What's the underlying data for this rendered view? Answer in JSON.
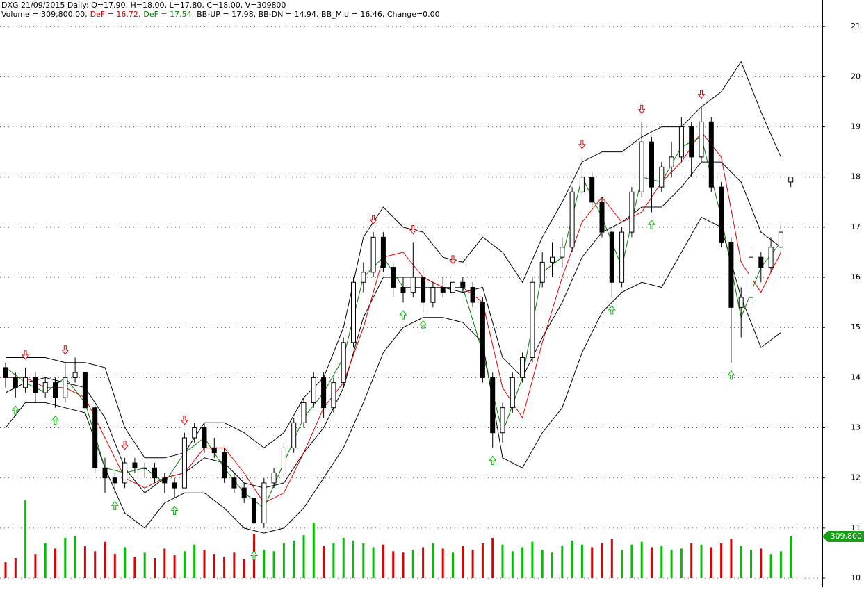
{
  "chart_data": {
    "type": "candlestick",
    "title": "DXG 21/09/2015 Daily: O=17.90, H=18.00, L=17.80, C=18.00, V=309800",
    "legend": [
      {
        "text": "Volume = 309,800.00,",
        "color": "#000000"
      },
      {
        "text": "DeF = 16.72,",
        "color": "#d40000"
      },
      {
        "text": "DeF = 17.54,",
        "color": "#008000"
      },
      {
        "text": "BB-UP = 17.98, BB-DN = 14.94, BB_Mid = 16.46, Change=0.00",
        "color": "#000000"
      }
    ],
    "ylim": [
      9.82,
      21.53
    ],
    "yticks": [
      10,
      11,
      12,
      13,
      14,
      15,
      16,
      17,
      18,
      19,
      20,
      21
    ],
    "grid": true,
    "ohlc": [
      [
        14.2,
        14.3,
        13.8,
        14.0
      ],
      [
        14.0,
        14.1,
        13.6,
        13.8
      ],
      [
        13.8,
        14.2,
        13.7,
        14.0
      ],
      [
        14.0,
        14.1,
        13.5,
        13.7
      ],
      [
        13.7,
        14.0,
        13.6,
        13.9
      ],
      [
        13.9,
        14.0,
        13.4,
        13.6
      ],
      [
        13.6,
        14.3,
        13.5,
        14.0
      ],
      [
        14.0,
        14.4,
        13.9,
        14.1
      ],
      [
        14.1,
        14.1,
        13.3,
        13.4
      ],
      [
        13.4,
        13.5,
        12.1,
        12.2
      ],
      [
        12.2,
        12.4,
        11.7,
        12.0
      ],
      [
        12.0,
        12.1,
        11.7,
        11.9
      ],
      [
        11.9,
        12.4,
        11.8,
        12.3
      ],
      [
        12.3,
        12.4,
        12.1,
        12.2
      ],
      [
        12.2,
        12.3,
        12.0,
        12.2
      ],
      [
        12.2,
        12.3,
        11.9,
        12.0
      ],
      [
        12.0,
        12.1,
        11.7,
        11.9
      ],
      [
        11.9,
        12.0,
        11.6,
        11.8
      ],
      [
        11.8,
        12.9,
        11.8,
        12.8
      ],
      [
        12.8,
        13.1,
        12.7,
        13.0
      ],
      [
        13.0,
        13.1,
        12.5,
        12.6
      ],
      [
        12.6,
        12.8,
        12.4,
        12.5
      ],
      [
        12.5,
        12.6,
        11.9,
        12.0
      ],
      [
        12.0,
        12.1,
        11.7,
        11.8
      ],
      [
        11.8,
        11.9,
        11.5,
        11.6
      ],
      [
        11.6,
        11.7,
        10.7,
        11.1
      ],
      [
        11.1,
        12.0,
        11.0,
        11.9
      ],
      [
        11.9,
        12.2,
        11.8,
        12.1
      ],
      [
        12.1,
        12.7,
        12.0,
        12.6
      ],
      [
        12.6,
        13.2,
        12.5,
        13.1
      ],
      [
        13.1,
        13.6,
        13.0,
        13.5
      ],
      [
        13.5,
        14.1,
        13.4,
        14.0
      ],
      [
        14.0,
        14.1,
        13.2,
        13.4
      ],
      [
        13.4,
        14.0,
        13.3,
        13.9
      ],
      [
        13.9,
        14.8,
        13.8,
        14.7
      ],
      [
        14.7,
        16.0,
        14.6,
        15.9
      ],
      [
        15.9,
        16.3,
        15.7,
        16.1
      ],
      [
        16.1,
        16.9,
        16.0,
        16.8
      ],
      [
        16.8,
        16.9,
        16.1,
        16.2
      ],
      [
        16.2,
        16.3,
        15.6,
        15.8
      ],
      [
        15.8,
        16.0,
        15.5,
        15.7
      ],
      [
        15.7,
        16.7,
        15.6,
        16.0
      ],
      [
        16.0,
        16.2,
        15.3,
        15.5
      ],
      [
        15.5,
        15.9,
        15.4,
        15.8
      ],
      [
        15.8,
        16.0,
        15.6,
        15.7
      ],
      [
        15.7,
        16.1,
        15.6,
        15.9
      ],
      [
        15.9,
        16.0,
        15.7,
        15.8
      ],
      [
        15.8,
        15.9,
        15.4,
        15.5
      ],
      [
        15.5,
        15.6,
        13.9,
        14.0
      ],
      [
        14.0,
        14.1,
        12.6,
        12.9
      ],
      [
        12.9,
        13.5,
        12.7,
        13.4
      ],
      [
        13.4,
        14.1,
        13.3,
        14.0
      ],
      [
        14.0,
        14.5,
        13.9,
        14.4
      ],
      [
        14.4,
        16.0,
        14.3,
        15.9
      ],
      [
        15.9,
        16.5,
        15.8,
        16.3
      ],
      [
        16.3,
        16.7,
        16.0,
        16.4
      ],
      [
        16.4,
        16.8,
        16.2,
        16.6
      ],
      [
        16.6,
        17.8,
        16.5,
        17.7
      ],
      [
        17.7,
        18.4,
        17.6,
        18.0
      ],
      [
        18.0,
        18.1,
        17.4,
        17.5
      ],
      [
        17.5,
        17.6,
        16.8,
        16.9
      ],
      [
        16.9,
        17.0,
        15.6,
        15.9
      ],
      [
        15.9,
        17.0,
        15.8,
        16.9
      ],
      [
        16.9,
        17.8,
        16.8,
        17.7
      ],
      [
        17.7,
        19.1,
        17.6,
        18.7
      ],
      [
        18.7,
        18.8,
        17.3,
        17.8
      ],
      [
        17.8,
        18.3,
        17.7,
        18.2
      ],
      [
        18.2,
        18.7,
        18.0,
        18.4
      ],
      [
        18.4,
        19.2,
        18.3,
        19.0
      ],
      [
        19.0,
        19.1,
        18.0,
        18.4
      ],
      [
        18.4,
        19.4,
        18.3,
        19.1
      ],
      [
        19.1,
        19.2,
        17.7,
        17.8
      ],
      [
        17.8,
        17.9,
        16.6,
        16.7
      ],
      [
        16.7,
        16.8,
        14.3,
        15.4
      ],
      [
        15.4,
        15.8,
        14.8,
        15.6
      ],
      [
        15.6,
        16.6,
        15.5,
        16.4
      ],
      [
        16.4,
        16.5,
        15.9,
        16.2
      ],
      [
        16.2,
        16.8,
        16.1,
        16.6
      ],
      [
        16.6,
        17.1,
        16.5,
        16.9
      ],
      [
        17.9,
        18.0,
        17.8,
        18.0
      ]
    ],
    "volume": [
      120000,
      150000,
      578000,
      180000,
      260000,
      220000,
      300000,
      310000,
      240000,
      200000,
      270000,
      180000,
      230000,
      160000,
      190000,
      150000,
      220000,
      170000,
      200000,
      250000,
      210000,
      180000,
      160000,
      190000,
      140000,
      330000,
      210000,
      200000,
      260000,
      280000,
      320000,
      413000,
      240000,
      260000,
      300000,
      280000,
      260000,
      230000,
      250000,
      200000,
      190000,
      210000,
      230000,
      260000,
      220000,
      190000,
      240000,
      210000,
      260000,
      300000,
      250000,
      200000,
      230000,
      270000,
      210000,
      190000,
      240000,
      280000,
      250000,
      230000,
      260000,
      290000,
      210000,
      250000,
      270000,
      230000,
      240000,
      210000,
      220000,
      260000,
      250000,
      230000,
      260000,
      290000,
      240000,
      210000,
      220000,
      180000,
      200000,
      309800
    ],
    "volume_lim": [
      0,
      620000
    ],
    "volume_tag": {
      "value": 309800,
      "label": "309,800"
    },
    "line_x": [
      0,
      2,
      4,
      6,
      8,
      10,
      12,
      14,
      16,
      18,
      20,
      22,
      24,
      26,
      28,
      30,
      32,
      34,
      36,
      38,
      40,
      42,
      44,
      46,
      48,
      50,
      52,
      54,
      56,
      58,
      60,
      62,
      64,
      66,
      68,
      70,
      72,
      74,
      76,
      78
    ],
    "lines": [
      {
        "color": "#000000",
        "values": [
          14.4,
          14.4,
          14.4,
          14.3,
          14.3,
          14.2,
          13.0,
          12.4,
          12.4,
          12.5,
          13.1,
          13.1,
          12.9,
          12.6,
          12.9,
          13.6,
          14.0,
          15.0,
          16.8,
          17.4,
          17.0,
          16.9,
          16.4,
          16.3,
          16.8,
          16.5,
          15.9,
          16.8,
          17.5,
          18.3,
          18.5,
          18.5,
          18.8,
          19.0,
          19.0,
          19.4,
          19.7,
          20.3,
          19.3,
          18.4
        ]
      },
      {
        "color": "#000000",
        "values": [
          13.7,
          13.9,
          14.0,
          13.9,
          13.8,
          13.2,
          12.2,
          11.7,
          12.0,
          12.1,
          12.4,
          12.3,
          11.9,
          11.8,
          11.9,
          12.5,
          13.0,
          13.8,
          15.2,
          16.0,
          16.0,
          16.0,
          15.8,
          15.7,
          15.8,
          14.4,
          14.0,
          14.8,
          15.5,
          16.4,
          16.9,
          17.1,
          17.4,
          17.4,
          17.8,
          18.3,
          18.3,
          17.9,
          16.9,
          16.6
        ]
      },
      {
        "color": "#000000",
        "values": [
          13.0,
          13.5,
          13.5,
          13.4,
          13.3,
          12.2,
          11.3,
          11.0,
          11.5,
          11.7,
          11.7,
          11.4,
          11.0,
          10.9,
          11.0,
          11.4,
          12.0,
          12.6,
          13.5,
          14.5,
          15.0,
          15.2,
          15.2,
          15.1,
          14.7,
          12.4,
          12.2,
          12.9,
          13.4,
          14.5,
          15.3,
          15.7,
          15.9,
          15.8,
          16.5,
          17.2,
          17.0,
          15.6,
          14.6,
          14.9
        ]
      },
      {
        "color": "#e00000",
        "values": [
          14.0,
          14.0,
          13.8,
          13.8,
          13.6,
          12.8,
          12.0,
          11.8,
          12.0,
          12.1,
          12.6,
          12.6,
          12.1,
          11.5,
          11.7,
          12.5,
          13.4,
          13.9,
          15.0,
          16.4,
          16.5,
          16.0,
          15.8,
          15.8,
          15.5,
          13.8,
          13.2,
          14.7,
          16.0,
          17.1,
          17.6,
          17.1,
          17.3,
          17.9,
          18.3,
          18.9,
          18.4,
          16.3,
          15.7,
          16.5
        ]
      },
      {
        "color": "#008000",
        "values": [
          14.2,
          13.9,
          13.7,
          14.0,
          13.5,
          12.2,
          12.1,
          12.2,
          11.9,
          12.5,
          12.8,
          12.2,
          11.7,
          11.4,
          12.3,
          13.2,
          13.7,
          14.4,
          16.0,
          16.4,
          15.8,
          15.8,
          15.8,
          15.8,
          14.5,
          12.9,
          14.0,
          16.1,
          16.4,
          18.0,
          17.2,
          16.2,
          18.0,
          17.9,
          18.6,
          18.8,
          17.2,
          15.2,
          16.2,
          16.7
        ]
      }
    ],
    "sell_signals": [
      2,
      6,
      12,
      18,
      37,
      41,
      45,
      58,
      64,
      70
    ],
    "buy_signals": [
      1,
      5,
      11,
      17,
      25,
      40,
      42,
      49,
      61,
      65,
      73
    ],
    "up_color": "#00c000",
    "down_color": "#e00000"
  }
}
